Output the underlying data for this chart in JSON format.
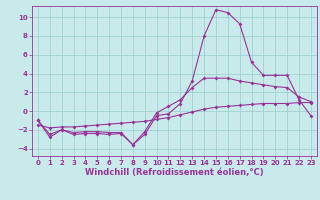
{
  "xlabel": "Windchill (Refroidissement éolien,°C)",
  "bg_color": "#c8eaea",
  "line_color": "#993399",
  "grid_color": "#99cccc",
  "xlim": [
    -0.5,
    23.5
  ],
  "ylim": [
    -4.8,
    11.2
  ],
  "yticks": [
    -4,
    -2,
    0,
    2,
    4,
    6,
    8,
    10
  ],
  "xticks": [
    0,
    1,
    2,
    3,
    4,
    5,
    6,
    7,
    8,
    9,
    10,
    11,
    12,
    13,
    14,
    15,
    16,
    17,
    18,
    19,
    20,
    21,
    22,
    23
  ],
  "line1_x": [
    0,
    1,
    2,
    3,
    4,
    5,
    6,
    7,
    8,
    9,
    10,
    11,
    12,
    13,
    14,
    15,
    16,
    17,
    18,
    19,
    20,
    21,
    22,
    23
  ],
  "line1_y": [
    -1.0,
    -2.8,
    -2.0,
    -2.5,
    -2.4,
    -2.4,
    -2.5,
    -2.4,
    -3.6,
    -2.5,
    -0.5,
    -0.3,
    0.8,
    3.2,
    8.0,
    10.8,
    10.5,
    9.3,
    5.2,
    3.8,
    3.8,
    3.8,
    1.2,
    -0.5
  ],
  "line2_x": [
    0,
    1,
    2,
    3,
    4,
    5,
    6,
    7,
    8,
    9,
    10,
    11,
    12,
    13,
    14,
    15,
    16,
    17,
    18,
    19,
    20,
    21,
    22,
    23
  ],
  "line2_y": [
    -1.0,
    -2.5,
    -2.0,
    -2.3,
    -2.2,
    -2.2,
    -2.3,
    -2.3,
    -3.6,
    -2.2,
    -0.2,
    0.5,
    1.2,
    2.5,
    3.5,
    3.5,
    3.5,
    3.2,
    3.0,
    2.8,
    2.6,
    2.5,
    1.5,
    1.0
  ],
  "line3_x": [
    0,
    1,
    2,
    3,
    4,
    5,
    6,
    7,
    8,
    9,
    10,
    11,
    12,
    13,
    14,
    15,
    16,
    17,
    18,
    19,
    20,
    21,
    22,
    23
  ],
  "line3_y": [
    -1.5,
    -1.8,
    -1.7,
    -1.7,
    -1.6,
    -1.5,
    -1.4,
    -1.3,
    -1.2,
    -1.1,
    -0.9,
    -0.7,
    -0.4,
    -0.1,
    0.2,
    0.4,
    0.5,
    0.6,
    0.7,
    0.8,
    0.8,
    0.8,
    0.9,
    0.9
  ],
  "markersize": 2.0,
  "linewidth": 0.8,
  "tick_fontsize": 5.0,
  "label_fontsize": 6.0
}
